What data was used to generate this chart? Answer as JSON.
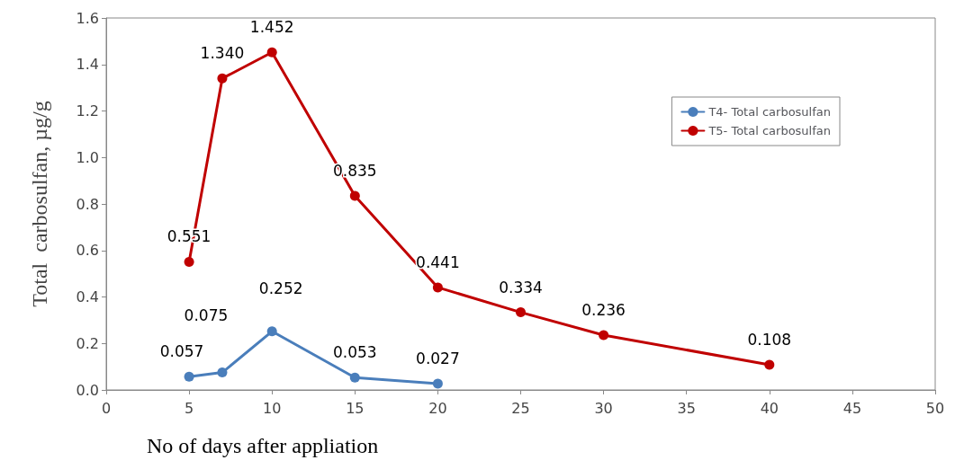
{
  "chart_data": {
    "type": "line",
    "xlabel": "No of days after appliation",
    "ylabel": "Total  carbosulfan, µg/g",
    "series": [
      {
        "name": "T4- Total carbosulfan",
        "color": "#4a7ebb",
        "x": [
          5,
          7,
          10,
          15,
          20
        ],
        "values": [
          0.057,
          0.075,
          0.252,
          0.053,
          0.027
        ],
        "value_labels": [
          "0.057",
          "0.075",
          "0.252",
          "0.053",
          "0.027"
        ]
      },
      {
        "name": "T5- Total carbosulfan",
        "color": "#c00000",
        "x": [
          5,
          7,
          10,
          15,
          20,
          25,
          30,
          40
        ],
        "values": [
          0.551,
          1.34,
          1.452,
          0.835,
          0.441,
          0.334,
          0.236,
          0.108
        ],
        "value_labels": [
          "0.551",
          "1.340",
          "1.452",
          "0.835",
          "0.441",
          "0.334",
          "0.236",
          "0.108"
        ]
      }
    ],
    "xlim": [
      0,
      50
    ],
    "xticks": [
      0,
      5,
      10,
      15,
      20,
      25,
      30,
      35,
      40,
      45,
      50
    ],
    "ylim": [
      0,
      1.6
    ],
    "yticks": [
      {
        "value": 0,
        "label": "0.0"
      },
      {
        "value": 0.2,
        "label": "0.2"
      },
      {
        "value": 0.4,
        "label": "0.4"
      },
      {
        "value": 0.6,
        "label": "0.6"
      },
      {
        "value": 0.8,
        "label": "0.8"
      },
      {
        "value": 1,
        "label": "1.0"
      },
      {
        "value": 1.2,
        "label": "1.2"
      },
      {
        "value": 1.4,
        "label": "1.4"
      },
      {
        "value": 1.6,
        "label": "1.6"
      }
    ],
    "grid": false,
    "legend": "right",
    "marker": "circle",
    "line_style": "solid"
  }
}
